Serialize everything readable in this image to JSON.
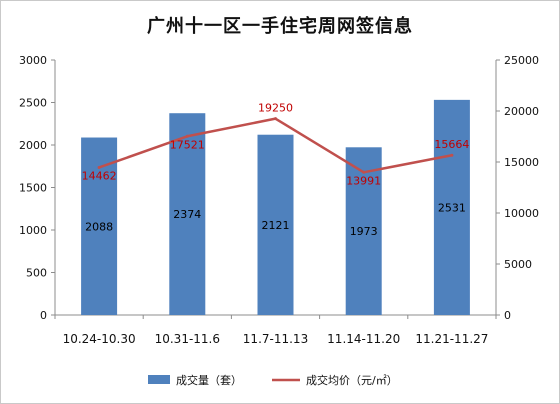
{
  "chart_data": {
    "type": "bar",
    "title": "广州十一区一手住宅周网签信息",
    "categories": [
      "10.24-10.30",
      "10.31-11.6",
      "11.7-11.13",
      "11.14-11.20",
      "11.21-11.27"
    ],
    "series": [
      {
        "name": "成交量（套）",
        "type": "bar",
        "axis": "left",
        "color": "#4f81bd",
        "values": [
          2088,
          2374,
          2121,
          1973,
          2531
        ]
      },
      {
        "name": "成交均价（元/㎡）",
        "type": "line",
        "axis": "right",
        "color": "#c0504d",
        "values": [
          14462,
          17521,
          19250,
          13991,
          15664
        ]
      }
    ],
    "y_left": {
      "min": 0,
      "max": 3000,
      "step": 500
    },
    "y_right": {
      "min": 0,
      "max": 25000,
      "step": 5000
    },
    "grid": false,
    "legend_position": "bottom",
    "left_ticks": [
      "0",
      "500",
      "1000",
      "1500",
      "2000",
      "2500",
      "3000"
    ],
    "right_ticks": [
      "0",
      "5000",
      "10000",
      "15000",
      "20000",
      "25000"
    ]
  },
  "legend": {
    "bar_label": "成交量（套）",
    "line_label": "成交均价（元/㎡）"
  }
}
